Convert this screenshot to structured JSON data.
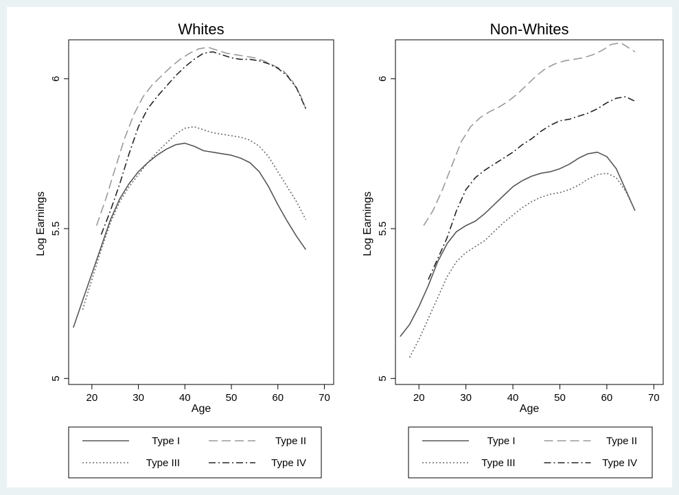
{
  "chart_data": [
    {
      "type": "line",
      "title": "Whites",
      "xlabel": "Age",
      "ylabel": "Log Earnings",
      "xlim": [
        15,
        72
      ],
      "ylim": [
        4.98,
        6.13
      ],
      "x_ticks": [
        20,
        30,
        40,
        50,
        60,
        70
      ],
      "y_ticks": [
        5,
        5.5,
        6
      ],
      "grid": false,
      "legend_position": "bottom",
      "series": [
        {
          "name": "Type I",
          "color": "#555555",
          "dash": "solid",
          "points": [
            [
              16,
              5.17
            ],
            [
              18,
              5.26
            ],
            [
              20,
              5.35
            ],
            [
              22,
              5.44
            ],
            [
              24,
              5.53
            ],
            [
              26,
              5.6
            ],
            [
              28,
              5.65
            ],
            [
              30,
              5.69
            ],
            [
              32,
              5.72
            ],
            [
              34,
              5.745
            ],
            [
              36,
              5.765
            ],
            [
              38,
              5.78
            ],
            [
              40,
              5.785
            ],
            [
              42,
              5.775
            ],
            [
              44,
              5.76
            ],
            [
              46,
              5.755
            ],
            [
              48,
              5.75
            ],
            [
              50,
              5.745
            ],
            [
              52,
              5.735
            ],
            [
              54,
              5.72
            ],
            [
              56,
              5.69
            ],
            [
              58,
              5.64
            ],
            [
              60,
              5.58
            ],
            [
              62,
              5.525
            ],
            [
              64,
              5.475
            ],
            [
              66,
              5.43
            ]
          ]
        },
        {
          "name": "Type II",
          "color": "#999999",
          "dash": "long-dash",
          "points": [
            [
              21,
              5.51
            ],
            [
              23,
              5.6
            ],
            [
              25,
              5.7
            ],
            [
              27,
              5.8
            ],
            [
              29,
              5.88
            ],
            [
              31,
              5.94
            ],
            [
              33,
              5.98
            ],
            [
              35,
              6.01
            ],
            [
              37,
              6.04
            ],
            [
              39,
              6.065
            ],
            [
              41,
              6.085
            ],
            [
              43,
              6.1
            ],
            [
              45,
              6.105
            ],
            [
              47,
              6.095
            ],
            [
              49,
              6.085
            ],
            [
              51,
              6.08
            ],
            [
              53,
              6.075
            ],
            [
              55,
              6.07
            ],
            [
              57,
              6.06
            ],
            [
              59,
              6.045
            ],
            [
              61,
              6.03
            ],
            [
              63,
              5.995
            ],
            [
              65,
              5.94
            ],
            [
              66,
              5.9
            ]
          ]
        },
        {
          "name": "Type III",
          "color": "#666666",
          "dash": "dot",
          "points": [
            [
              18,
              5.23
            ],
            [
              20,
              5.33
            ],
            [
              22,
              5.43
            ],
            [
              24,
              5.52
            ],
            [
              26,
              5.59
            ],
            [
              28,
              5.64
            ],
            [
              30,
              5.68
            ],
            [
              32,
              5.72
            ],
            [
              34,
              5.755
            ],
            [
              36,
              5.785
            ],
            [
              38,
              5.815
            ],
            [
              40,
              5.835
            ],
            [
              42,
              5.84
            ],
            [
              44,
              5.83
            ],
            [
              46,
              5.82
            ],
            [
              48,
              5.815
            ],
            [
              50,
              5.81
            ],
            [
              52,
              5.805
            ],
            [
              54,
              5.795
            ],
            [
              56,
              5.775
            ],
            [
              58,
              5.74
            ],
            [
              60,
              5.69
            ],
            [
              62,
              5.64
            ],
            [
              64,
              5.59
            ],
            [
              66,
              5.53
            ]
          ]
        },
        {
          "name": "Type IV",
          "color": "#222222",
          "dash": "dash-dot",
          "points": [
            [
              22,
              5.48
            ],
            [
              24,
              5.56
            ],
            [
              26,
              5.65
            ],
            [
              28,
              5.75
            ],
            [
              30,
              5.84
            ],
            [
              32,
              5.9
            ],
            [
              34,
              5.94
            ],
            [
              36,
              5.975
            ],
            [
              38,
              6.01
            ],
            [
              40,
              6.04
            ],
            [
              42,
              6.065
            ],
            [
              44,
              6.085
            ],
            [
              46,
              6.09
            ],
            [
              48,
              6.08
            ],
            [
              50,
              6.07
            ],
            [
              52,
              6.065
            ],
            [
              54,
              6.065
            ],
            [
              56,
              6.06
            ],
            [
              58,
              6.05
            ],
            [
              60,
              6.035
            ],
            [
              62,
              6.01
            ],
            [
              64,
              5.97
            ],
            [
              66,
              5.9
            ]
          ]
        }
      ]
    },
    {
      "type": "line",
      "title": "Non-Whites",
      "xlabel": "Age",
      "ylabel": "Log Earnings",
      "xlim": [
        15,
        72
      ],
      "ylim": [
        4.98,
        6.13
      ],
      "x_ticks": [
        20,
        30,
        40,
        50,
        60,
        70
      ],
      "y_ticks": [
        5,
        5.5,
        6
      ],
      "grid": false,
      "legend_position": "bottom",
      "series": [
        {
          "name": "Type I",
          "color": "#555555",
          "dash": "solid",
          "points": [
            [
              16,
              5.14
            ],
            [
              18,
              5.18
            ],
            [
              20,
              5.24
            ],
            [
              22,
              5.31
            ],
            [
              24,
              5.39
            ],
            [
              26,
              5.45
            ],
            [
              28,
              5.49
            ],
            [
              30,
              5.51
            ],
            [
              32,
              5.525
            ],
            [
              34,
              5.55
            ],
            [
              36,
              5.58
            ],
            [
              38,
              5.61
            ],
            [
              40,
              5.64
            ],
            [
              42,
              5.66
            ],
            [
              44,
              5.675
            ],
            [
              46,
              5.685
            ],
            [
              48,
              5.69
            ],
            [
              50,
              5.7
            ],
            [
              52,
              5.715
            ],
            [
              54,
              5.735
            ],
            [
              56,
              5.75
            ],
            [
              58,
              5.755
            ],
            [
              60,
              5.74
            ],
            [
              62,
              5.7
            ],
            [
              64,
              5.63
            ],
            [
              66,
              5.56
            ]
          ]
        },
        {
          "name": "Type II",
          "color": "#999999",
          "dash": "long-dash",
          "points": [
            [
              21,
              5.51
            ],
            [
              23,
              5.56
            ],
            [
              25,
              5.63
            ],
            [
              27,
              5.71
            ],
            [
              29,
              5.79
            ],
            [
              31,
              5.84
            ],
            [
              33,
              5.87
            ],
            [
              35,
              5.89
            ],
            [
              37,
              5.905
            ],
            [
              39,
              5.925
            ],
            [
              41,
              5.95
            ],
            [
              43,
              5.98
            ],
            [
              45,
              6.01
            ],
            [
              47,
              6.035
            ],
            [
              49,
              6.05
            ],
            [
              51,
              6.06
            ],
            [
              53,
              6.065
            ],
            [
              55,
              6.07
            ],
            [
              57,
              6.08
            ],
            [
              59,
              6.095
            ],
            [
              61,
              6.115
            ],
            [
              63,
              6.12
            ],
            [
              65,
              6.1
            ],
            [
              66,
              6.09
            ]
          ]
        },
        {
          "name": "Type III",
          "color": "#666666",
          "dash": "dot",
          "points": [
            [
              18,
              5.07
            ],
            [
              20,
              5.13
            ],
            [
              22,
              5.2
            ],
            [
              24,
              5.27
            ],
            [
              26,
              5.34
            ],
            [
              28,
              5.39
            ],
            [
              30,
              5.42
            ],
            [
              32,
              5.44
            ],
            [
              34,
              5.46
            ],
            [
              36,
              5.49
            ],
            [
              38,
              5.52
            ],
            [
              40,
              5.545
            ],
            [
              42,
              5.57
            ],
            [
              44,
              5.59
            ],
            [
              46,
              5.605
            ],
            [
              48,
              5.615
            ],
            [
              50,
              5.62
            ],
            [
              52,
              5.63
            ],
            [
              54,
              5.645
            ],
            [
              56,
              5.665
            ],
            [
              58,
              5.68
            ],
            [
              60,
              5.685
            ],
            [
              62,
              5.67
            ],
            [
              64,
              5.625
            ],
            [
              66,
              5.56
            ]
          ]
        },
        {
          "name": "Type IV",
          "color": "#222222",
          "dash": "dash-dot",
          "points": [
            [
              22,
              5.33
            ],
            [
              24,
              5.4
            ],
            [
              26,
              5.47
            ],
            [
              28,
              5.56
            ],
            [
              30,
              5.63
            ],
            [
              32,
              5.67
            ],
            [
              34,
              5.695
            ],
            [
              36,
              5.715
            ],
            [
              38,
              5.735
            ],
            [
              40,
              5.755
            ],
            [
              42,
              5.78
            ],
            [
              44,
              5.8
            ],
            [
              46,
              5.825
            ],
            [
              48,
              5.845
            ],
            [
              50,
              5.86
            ],
            [
              52,
              5.865
            ],
            [
              54,
              5.875
            ],
            [
              56,
              5.885
            ],
            [
              58,
              5.9
            ],
            [
              60,
              5.92
            ],
            [
              62,
              5.935
            ],
            [
              64,
              5.94
            ],
            [
              66,
              5.925
            ]
          ]
        }
      ]
    }
  ]
}
